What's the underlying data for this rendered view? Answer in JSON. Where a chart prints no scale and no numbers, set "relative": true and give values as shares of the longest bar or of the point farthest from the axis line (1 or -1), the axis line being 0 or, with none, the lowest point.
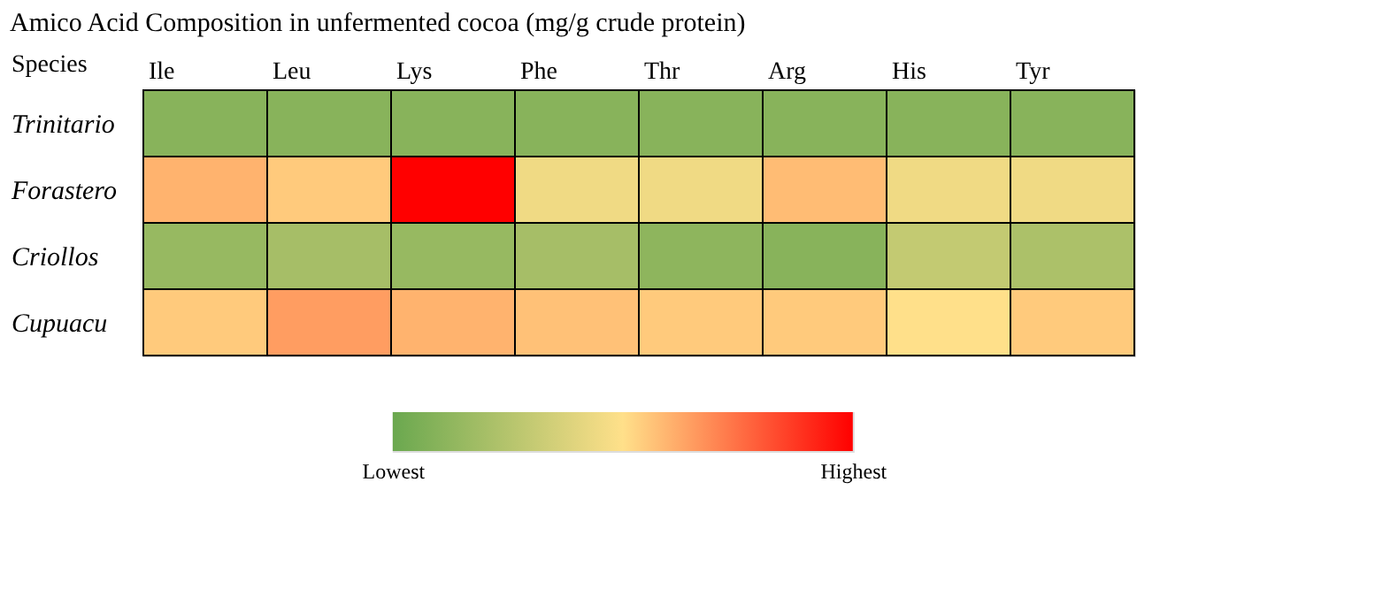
{
  "chart_data": {
    "type": "heatmap",
    "title": "Amico Acid Composition in unfermented cocoa (mg/g crude protein)",
    "ylabel": "Species",
    "relative": true,
    "categories": [
      "Ile",
      "Leu",
      "Lys",
      "Phe",
      "Thr",
      "Arg",
      "His",
      "Tyr"
    ],
    "y_categories": [
      "Trinitario",
      "Forastero",
      "Criollos",
      "Cupuacu"
    ],
    "cells": [
      [
        0.1,
        0.1,
        0.1,
        0.1,
        0.1,
        0.1,
        0.1,
        0.1
      ],
      [
        0.6,
        0.55,
        1,
        0.45,
        0.45,
        0.58,
        0.45,
        0.45
      ],
      [
        0.15,
        0.2,
        0.15,
        0.2,
        0.12,
        0.1,
        0.3,
        0.22
      ],
      [
        0.55,
        0.65,
        0.6,
        0.57,
        0.55,
        0.55,
        0.5,
        0.55
      ]
    ],
    "clim": [
      0,
      1
    ],
    "cticks": [
      {
        "value": 0,
        "label": "Lowest"
      },
      {
        "value": 1,
        "label": "Highest"
      }
    ]
  }
}
